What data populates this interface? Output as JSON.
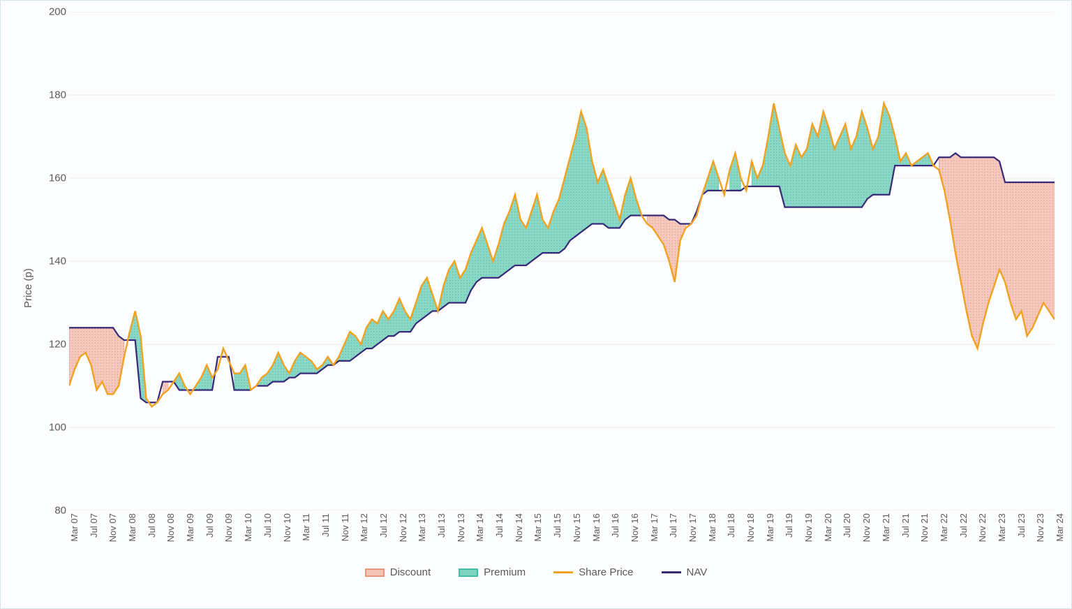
{
  "chart": {
    "type": "line-area",
    "ylabel": "Price (p)",
    "label_fontsize": 15,
    "ylim": [
      80,
      200
    ],
    "yticks": [
      80,
      100,
      120,
      140,
      160,
      180,
      200
    ],
    "background_color": "#fcfdfe",
    "border_color": "#d5e4eb",
    "grid_color": "#ececec",
    "text_color": "#5a5a5a",
    "colors": {
      "discount_fill": "#f5c3b8",
      "discount_line": "#e9967a",
      "premium_fill": "#7fd4c1",
      "premium_line": "#3fbfa4",
      "share_price": "#f0a220",
      "nav": "#372a78"
    },
    "line_width_price": 2.4,
    "line_width_nav": 2.2,
    "x_labels": [
      "Mar 07",
      "Jul 07",
      "Nov 07",
      "Mar 08",
      "Jul 08",
      "Nov 08",
      "Mar 09",
      "Jul 09",
      "Nov 09",
      "Mar 10",
      "Jul 10",
      "Nov 10",
      "Mar 11",
      "Jul 11",
      "Nov 11",
      "Mar 12",
      "Jul 12",
      "Nov 12",
      "Mar 13",
      "Jul 13",
      "Nov 13",
      "Mar 14",
      "Jul 14",
      "Nov 14",
      "Mar 15",
      "Jul 15",
      "Nov 15",
      "Mar 16",
      "Jul 16",
      "Nov 16",
      "Mar 17",
      "Jul 17",
      "Nov 17",
      "Mar 18",
      "Jul 18",
      "Nov 18",
      "Mar 19",
      "Jul 19",
      "Nov 19",
      "Mar 20",
      "Jul 20",
      "Nov 20",
      "Mar 21",
      "Jul 21",
      "Nov 21",
      "Mar 22",
      "Jul 22",
      "Nov 22",
      "Mar 23",
      "Jul 23",
      "Nov 23",
      "Mar 24"
    ],
    "legend": {
      "discount": "Discount",
      "premium": "Premium",
      "share_price": "Share Price",
      "nav": "NAV"
    },
    "nav": [
      124,
      124,
      124,
      124,
      124,
      124,
      124,
      124,
      124,
      122,
      121,
      121,
      121,
      107,
      106,
      106,
      106,
      111,
      111,
      111,
      109,
      109,
      109,
      109,
      109,
      109,
      109,
      117,
      117,
      117,
      109,
      109,
      109,
      109,
      110,
      110,
      110,
      111,
      111,
      111,
      112,
      112,
      113,
      113,
      113,
      113,
      114,
      115,
      115,
      116,
      116,
      116,
      117,
      118,
      119,
      119,
      120,
      121,
      122,
      122,
      123,
      123,
      123,
      125,
      126,
      127,
      128,
      128,
      129,
      130,
      130,
      130,
      130,
      133,
      135,
      136,
      136,
      136,
      136,
      137,
      138,
      139,
      139,
      139,
      140,
      141,
      142,
      142,
      142,
      142,
      143,
      145,
      146,
      147,
      148,
      149,
      149,
      149,
      148,
      148,
      148,
      150,
      151,
      151,
      151,
      151,
      151,
      151,
      151,
      150,
      150,
      149,
      149,
      149,
      152,
      156,
      157,
      157,
      157,
      157,
      157,
      157,
      157,
      158,
      158,
      158,
      158,
      158,
      158,
      158,
      153,
      153,
      153,
      153,
      153,
      153,
      153,
      153,
      153,
      153,
      153,
      153,
      153,
      153,
      153,
      155,
      156,
      156,
      156,
      156,
      163,
      163,
      163,
      163,
      163,
      163,
      163,
      163,
      165,
      165,
      165,
      166,
      165,
      165,
      165,
      165,
      165,
      165,
      165,
      164,
      159,
      159,
      159,
      159,
      159,
      159,
      159,
      159,
      159,
      159
    ],
    "share_price": [
      110,
      114,
      117,
      118,
      115,
      109,
      111,
      108,
      108,
      110,
      117,
      123,
      128,
      122,
      107,
      105,
      106,
      108,
      109,
      111,
      113,
      110,
      108,
      110,
      112,
      115,
      112,
      114,
      119,
      116,
      113,
      113,
      115,
      109,
      110,
      112,
      113,
      115,
      118,
      115,
      113,
      116,
      118,
      117,
      116,
      114,
      115,
      117,
      115,
      117,
      120,
      123,
      122,
      120,
      124,
      126,
      125,
      128,
      126,
      128,
      131,
      128,
      126,
      130,
      134,
      136,
      132,
      128,
      134,
      138,
      140,
      136,
      138,
      142,
      145,
      148,
      144,
      140,
      144,
      149,
      152,
      156,
      150,
      148,
      152,
      156,
      150,
      148,
      152,
      155,
      160,
      165,
      170,
      176,
      172,
      164,
      159,
      162,
      158,
      154,
      150,
      156,
      160,
      155,
      151,
      149,
      148,
      146,
      144,
      140,
      135,
      145,
      148,
      149,
      151,
      156,
      160,
      164,
      160,
      156,
      162,
      166,
      160,
      157,
      164,
      160,
      163,
      170,
      178,
      172,
      166,
      163,
      168,
      165,
      167,
      173,
      170,
      176,
      172,
      167,
      170,
      173,
      167,
      170,
      176,
      172,
      167,
      170,
      178,
      175,
      170,
      164,
      166,
      163,
      164,
      165,
      166,
      163,
      162,
      157,
      150,
      142,
      135,
      128,
      122,
      119,
      125,
      130,
      134,
      138,
      135,
      130,
      126,
      128,
      122,
      124,
      127,
      130,
      128,
      126
    ]
  }
}
